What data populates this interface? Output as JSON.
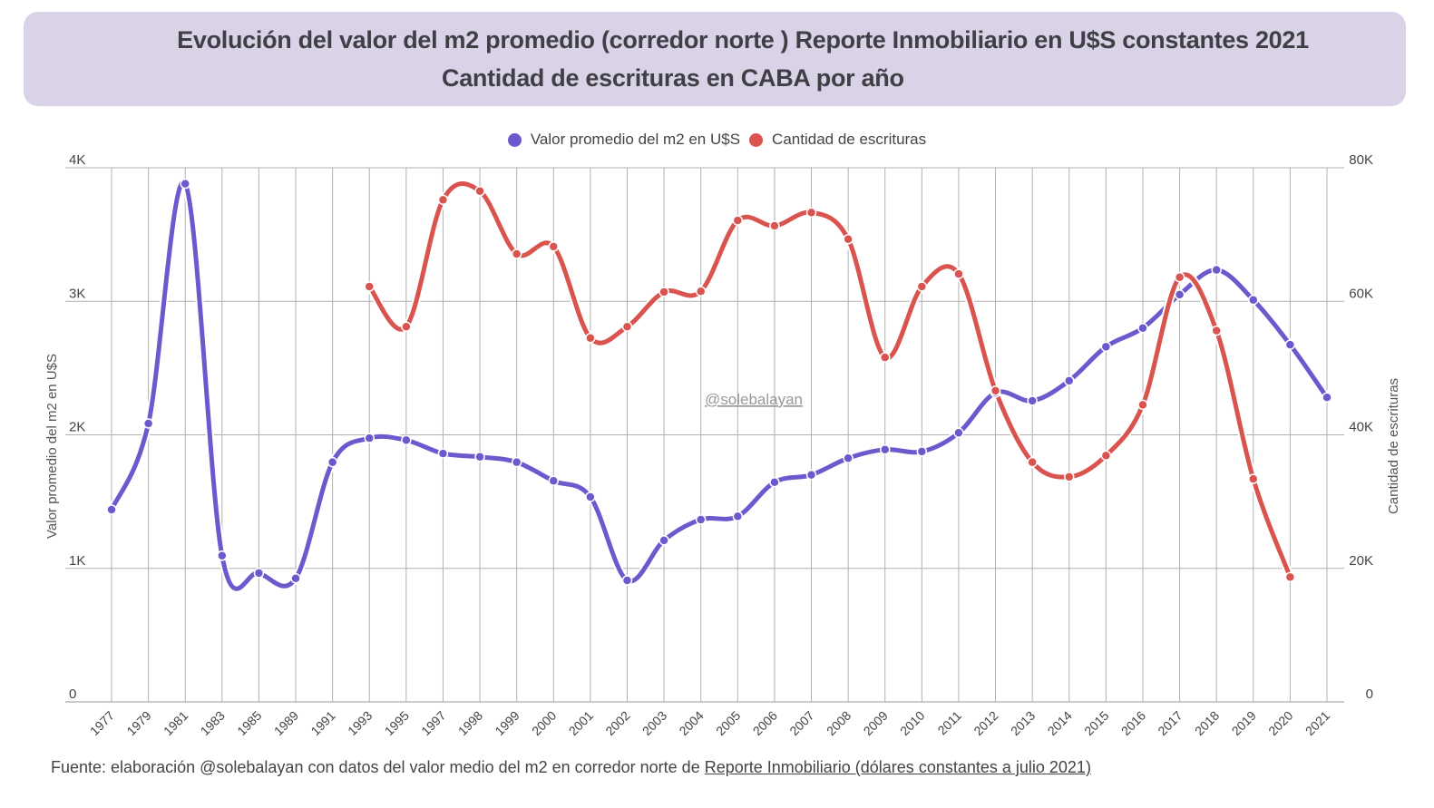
{
  "header": {
    "title_line1": "Evolución del valor del m2 promedio (corredor norte ) Reporte Inmobiliario en U$S constantes 2021",
    "title_line2": "Cantidad de escrituras en CABA por año"
  },
  "watermark": "@solebalayan",
  "footer": {
    "source_prefix": "Fuente: elaboración @solebalayan con datos del valor medio del m2 en corredor norte de ",
    "source_link": "Reporte Inmobiliario (dólares constantes a julio 2021)"
  },
  "colors": {
    "series_m2": "#6a5acd",
    "series_escrituras": "#d9534f",
    "title_bg": "#dad2e7",
    "grid": "#b0b0b0"
  },
  "chart_data": {
    "type": "line",
    "title": "Evolución del valor del m2 promedio (corredor norte ) Reporte Inmobiliario en U$S constantes 2021 / Cantidad de escrituras en CABA por año",
    "legend_position": "top",
    "grid": true,
    "categories": [
      "1977",
      "1979",
      "1981",
      "1983",
      "1985",
      "1989",
      "1991",
      "1993",
      "1995",
      "1997",
      "1998",
      "1999",
      "2000",
      "2001",
      "2002",
      "2003",
      "2004",
      "2005",
      "2006",
      "2007",
      "2008",
      "2009",
      "2010",
      "2011",
      "2012",
      "2013",
      "2014",
      "2015",
      "2016",
      "2017",
      "2018",
      "2019",
      "2020",
      "2021"
    ],
    "xlabel": "",
    "y_left": {
      "label": "Valor promedio del m2 en U$S",
      "range": [
        0,
        4000
      ],
      "ticks": [
        0,
        1000,
        2000,
        3000,
        4000
      ],
      "tick_labels": [
        "0",
        "1K",
        "2K",
        "3K",
        "4K"
      ]
    },
    "y_right": {
      "label": "Cantidad de escrituras",
      "range": [
        0,
        80000
      ],
      "ticks": [
        0,
        20000,
        40000,
        60000,
        80000
      ],
      "tick_labels": [
        "0",
        "20K",
        "40K",
        "60K",
        "80K"
      ]
    },
    "series": [
      {
        "name": "Valor promedio del m2 en U$S",
        "axis": "left",
        "values": [
          1440,
          2085,
          3880,
          1095,
          965,
          925,
          1795,
          1975,
          1960,
          1860,
          1835,
          1795,
          1655,
          1535,
          910,
          1210,
          1365,
          1390,
          1645,
          1700,
          1825,
          1890,
          1875,
          2015,
          2315,
          2255,
          2405,
          2660,
          2800,
          3050,
          3235,
          3010,
          2675,
          2280
        ]
      },
      {
        "name": "Cantidad de escrituras",
        "axis": "right",
        "values": [
          null,
          null,
          null,
          null,
          null,
          null,
          null,
          62200,
          56200,
          75200,
          76500,
          67100,
          68200,
          54500,
          56200,
          61400,
          61500,
          72100,
          71300,
          73300,
          69300,
          51600,
          62200,
          64100,
          46600,
          35900,
          33700,
          36900,
          44500,
          63600,
          55600,
          33400,
          18700,
          null
        ]
      }
    ]
  }
}
